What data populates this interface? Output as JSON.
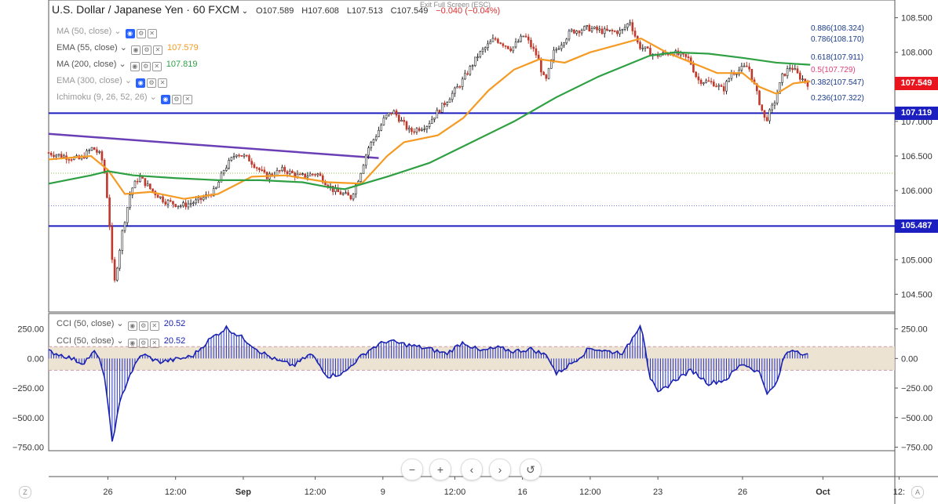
{
  "header": {
    "symbol": "U.S. Dollar / Japanese Yen",
    "interval": "60",
    "exchange": "FXCM",
    "open": "O107.589",
    "high": "H107.608",
    "low": "L107.513",
    "close": "C107.549",
    "change": "−0.040 (−0.04%)",
    "exit_fullscreen": "Exit Full Screen (ESC)"
  },
  "indicators": [
    {
      "label": "MA (50, close)",
      "value": "",
      "color": "#999999",
      "faded": true
    },
    {
      "label": "EMA (55, close)",
      "value": "107.579",
      "color": "#f59a23",
      "faded": false
    },
    {
      "label": "MA (200, close)",
      "value": "107.819",
      "color": "#2ea043",
      "faded": false
    },
    {
      "label": "EMA (300, close)",
      "value": "",
      "color": "#999999",
      "faded": true
    },
    {
      "label": "Ichimoku (9, 26, 52, 26)",
      "value": "",
      "color": "#999999",
      "faded": true
    }
  ],
  "cci_legends": [
    {
      "label": "CCI (50, close)",
      "value": "20.52"
    },
    {
      "label": "CCI (50, close)",
      "value": "20.52"
    }
  ],
  "fib_levels": [
    {
      "label": "0.886(108.324)",
      "price": 108.324,
      "color": "#1a3c8c"
    },
    {
      "label": "0.786(108.170)",
      "price": 108.17,
      "color": "#1a3c8c"
    },
    {
      "label": "0.618(107.911)",
      "price": 107.911,
      "color": "#1a3c8c"
    },
    {
      "label": "0.5(107.729)",
      "price": 107.729,
      "color": "#e0407a"
    },
    {
      "label": "0.382(107.547)",
      "price": 107.547,
      "color": "#1a3c8c"
    },
    {
      "label": "0.236(107.322)",
      "price": 107.322,
      "color": "#1a3c8c"
    }
  ],
  "price_tags": [
    {
      "label": "107.549",
      "price": 107.549,
      "color": "#e8141e"
    },
    {
      "label": "107.119",
      "price": 107.119,
      "color": "#1b1fbf"
    },
    {
      "label": "105.487",
      "price": 105.487,
      "color": "#1b1fbf"
    }
  ],
  "chart_data": {
    "type": "line",
    "price_axis": {
      "ticks": [
        "108.500",
        "108.000",
        "107.500",
        "107.000",
        "106.500",
        "106.000",
        "105.500",
        "105.000",
        "104.500"
      ],
      "range": [
        104.3,
        108.7
      ]
    },
    "cci_axis": {
      "ticks": [
        "250.00",
        "0.00",
        "−250.00",
        "−500.00",
        "−750.00"
      ],
      "range": [
        -780,
        380
      ],
      "band": [
        -100,
        100
      ]
    },
    "time_axis": {
      "labels": [
        "26",
        "12:00",
        "Sep",
        "12:00",
        "9",
        "12:00",
        "16",
        "12:00",
        "23",
        "26",
        "Oct",
        "12:"
      ]
    },
    "horizontal_lines": [
      107.119,
      105.487
    ],
    "dotted_lines": [
      {
        "price": 106.25,
        "color": "#8bc34a"
      },
      {
        "price": 105.78,
        "color": "#7b7be0"
      }
    ],
    "trend_line": {
      "from": [
        0,
        106.82
      ],
      "to": [
        0.39,
        106.47
      ],
      "color": "#6a3fb5"
    },
    "price_path": [
      [
        0.0,
        106.55
      ],
      [
        0.02,
        106.5
      ],
      [
        0.04,
        106.45
      ],
      [
        0.055,
        106.62
      ],
      [
        0.065,
        106.5
      ],
      [
        0.07,
        106.2
      ],
      [
        0.075,
        105.5
      ],
      [
        0.08,
        104.6
      ],
      [
        0.09,
        105.4
      ],
      [
        0.1,
        106.0
      ],
      [
        0.11,
        106.2
      ],
      [
        0.125,
        106.0
      ],
      [
        0.14,
        105.85
      ],
      [
        0.16,
        105.78
      ],
      [
        0.18,
        105.85
      ],
      [
        0.2,
        106.0
      ],
      [
        0.21,
        106.3
      ],
      [
        0.225,
        106.55
      ],
      [
        0.24,
        106.45
      ],
      [
        0.26,
        106.2
      ],
      [
        0.28,
        106.3
      ],
      [
        0.3,
        106.2
      ],
      [
        0.32,
        106.25
      ],
      [
        0.34,
        106.0
      ],
      [
        0.36,
        105.9
      ],
      [
        0.37,
        106.2
      ],
      [
        0.38,
        106.6
      ],
      [
        0.39,
        106.8
      ],
      [
        0.4,
        107.05
      ],
      [
        0.41,
        107.15
      ],
      [
        0.42,
        107.0
      ],
      [
        0.43,
        106.85
      ],
      [
        0.45,
        106.95
      ],
      [
        0.47,
        107.25
      ],
      [
        0.49,
        107.55
      ],
      [
        0.51,
        107.95
      ],
      [
        0.53,
        108.2
      ],
      [
        0.55,
        108.05
      ],
      [
        0.565,
        108.25
      ],
      [
        0.58,
        107.95
      ],
      [
        0.59,
        107.55
      ],
      [
        0.6,
        108.0
      ],
      [
        0.62,
        108.3
      ],
      [
        0.64,
        108.35
      ],
      [
        0.66,
        108.3
      ],
      [
        0.68,
        108.3
      ],
      [
        0.69,
        108.45
      ],
      [
        0.7,
        108.1
      ],
      [
        0.72,
        107.95
      ],
      [
        0.74,
        108.0
      ],
      [
        0.76,
        107.9
      ],
      [
        0.77,
        107.6
      ],
      [
        0.79,
        107.55
      ],
      [
        0.8,
        107.45
      ],
      [
        0.81,
        107.7
      ],
      [
        0.83,
        107.8
      ],
      [
        0.84,
        107.4
      ],
      [
        0.85,
        107.0
      ],
      [
        0.86,
        107.25
      ],
      [
        0.87,
        107.65
      ],
      [
        0.88,
        107.8
      ],
      [
        0.89,
        107.65
      ],
      [
        0.9,
        107.55
      ]
    ],
    "series": [
      {
        "name": "EMA (55, close)",
        "color": "#f59a23",
        "path": [
          [
            0.0,
            106.45
          ],
          [
            0.05,
            106.5
          ],
          [
            0.07,
            106.3
          ],
          [
            0.09,
            105.95
          ],
          [
            0.12,
            105.98
          ],
          [
            0.16,
            105.88
          ],
          [
            0.2,
            105.95
          ],
          [
            0.24,
            106.2
          ],
          [
            0.28,
            106.22
          ],
          [
            0.33,
            106.12
          ],
          [
            0.37,
            106.1
          ],
          [
            0.4,
            106.5
          ],
          [
            0.42,
            106.7
          ],
          [
            0.46,
            106.8
          ],
          [
            0.49,
            107.05
          ],
          [
            0.52,
            107.45
          ],
          [
            0.55,
            107.75
          ],
          [
            0.58,
            107.9
          ],
          [
            0.61,
            107.85
          ],
          [
            0.64,
            108.0
          ],
          [
            0.67,
            108.1
          ],
          [
            0.7,
            108.2
          ],
          [
            0.73,
            108.0
          ],
          [
            0.76,
            107.85
          ],
          [
            0.79,
            107.7
          ],
          [
            0.82,
            107.7
          ],
          [
            0.84,
            107.5
          ],
          [
            0.86,
            107.4
          ],
          [
            0.88,
            107.55
          ],
          [
            0.9,
            107.58
          ]
        ]
      },
      {
        "name": "MA (200, close)",
        "color": "#2ea043",
        "path": [
          [
            0.0,
            106.1
          ],
          [
            0.05,
            106.22
          ],
          [
            0.07,
            106.28
          ],
          [
            0.1,
            106.22
          ],
          [
            0.15,
            106.18
          ],
          [
            0.2,
            106.15
          ],
          [
            0.25,
            106.15
          ],
          [
            0.3,
            106.12
          ],
          [
            0.33,
            106.05
          ],
          [
            0.35,
            106.02
          ],
          [
            0.4,
            106.2
          ],
          [
            0.45,
            106.4
          ],
          [
            0.5,
            106.7
          ],
          [
            0.55,
            107.0
          ],
          [
            0.6,
            107.35
          ],
          [
            0.65,
            107.65
          ],
          [
            0.68,
            107.8
          ],
          [
            0.71,
            107.95
          ],
          [
            0.74,
            108.0
          ],
          [
            0.78,
            107.98
          ],
          [
            0.82,
            107.92
          ],
          [
            0.86,
            107.85
          ],
          [
            0.9,
            107.82
          ]
        ]
      }
    ],
    "cci_path": [
      [
        0.0,
        60
      ],
      [
        0.02,
        20
      ],
      [
        0.04,
        -40
      ],
      [
        0.055,
        60
      ],
      [
        0.065,
        -100
      ],
      [
        0.075,
        -700
      ],
      [
        0.085,
        -350
      ],
      [
        0.095,
        -150
      ],
      [
        0.11,
        40
      ],
      [
        0.13,
        -30
      ],
      [
        0.15,
        -10
      ],
      [
        0.17,
        20
      ],
      [
        0.19,
        160
      ],
      [
        0.21,
        260
      ],
      [
        0.23,
        170
      ],
      [
        0.25,
        60
      ],
      [
        0.27,
        -20
      ],
      [
        0.29,
        -60
      ],
      [
        0.31,
        40
      ],
      [
        0.33,
        -150
      ],
      [
        0.35,
        -120
      ],
      [
        0.36,
        -40
      ],
      [
        0.38,
        80
      ],
      [
        0.4,
        150
      ],
      [
        0.42,
        120
      ],
      [
        0.45,
        80
      ],
      [
        0.47,
        40
      ],
      [
        0.49,
        140
      ],
      [
        0.51,
        60
      ],
      [
        0.53,
        90
      ],
      [
        0.55,
        60
      ],
      [
        0.57,
        80
      ],
      [
        0.59,
        20
      ],
      [
        0.6,
        -130
      ],
      [
        0.62,
        -30
      ],
      [
        0.64,
        90
      ],
      [
        0.66,
        60
      ],
      [
        0.68,
        50
      ],
      [
        0.7,
        300
      ],
      [
        0.705,
        100
      ],
      [
        0.71,
        -150
      ],
      [
        0.72,
        -300
      ],
      [
        0.74,
        -180
      ],
      [
        0.76,
        -100
      ],
      [
        0.78,
        -210
      ],
      [
        0.8,
        -180
      ],
      [
        0.82,
        -40
      ],
      [
        0.84,
        -120
      ],
      [
        0.85,
        -300
      ],
      [
        0.86,
        -220
      ],
      [
        0.87,
        30
      ],
      [
        0.88,
        80
      ],
      [
        0.89,
        50
      ],
      [
        0.9,
        20
      ]
    ]
  },
  "controls": {
    "zoom_out": "−",
    "zoom_in": "+",
    "scroll_left": "‹",
    "scroll_right": "›",
    "reset": "↺",
    "auto": "A",
    "z": "Z"
  }
}
